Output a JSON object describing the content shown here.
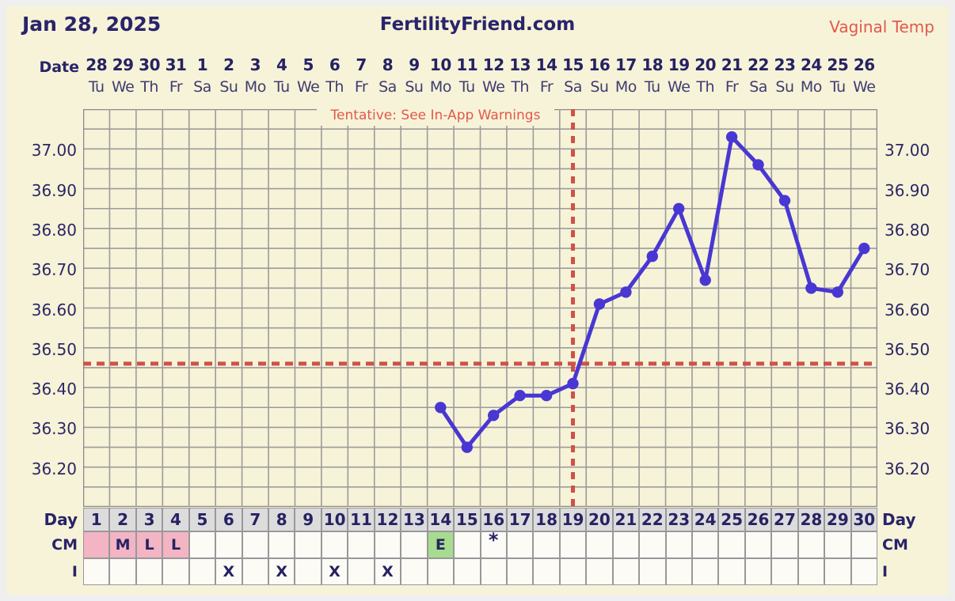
{
  "header": {
    "chart_date": "Jan 28, 2025",
    "site_name": "FertilityFriend.com",
    "temp_type": "Vaginal Temp"
  },
  "date_axis": {
    "label": "Date",
    "dates": [
      "28",
      "29",
      "30",
      "31",
      "1",
      "2",
      "3",
      "4",
      "5",
      "6",
      "7",
      "8",
      "9",
      "10",
      "11",
      "12",
      "13",
      "14",
      "15",
      "16",
      "17",
      "18",
      "19",
      "20",
      "21",
      "22",
      "23",
      "24",
      "25",
      "26"
    ],
    "weekdays": [
      "Tu",
      "We",
      "Th",
      "Fr",
      "Sa",
      "Su",
      "Mo",
      "Tu",
      "We",
      "Th",
      "Fr",
      "Sa",
      "Su",
      "Mo",
      "Tu",
      "We",
      "Th",
      "Fr",
      "Sa",
      "Su",
      "Mo",
      "Tu",
      "We",
      "Th",
      "Fr",
      "Sa",
      "Su",
      "Mo",
      "Tu",
      "We"
    ]
  },
  "chart_data": {
    "type": "line",
    "title": "Basal body temperature chart",
    "annotation": "Tentative: See In-App Warnings",
    "total_days": 30,
    "series": [
      {
        "name": "Vaginal Temp",
        "x_days": [
          14,
          15,
          16,
          17,
          18,
          19,
          20,
          21,
          22,
          23,
          24,
          25,
          26,
          27,
          28,
          29,
          30
        ],
        "values": [
          36.35,
          36.25,
          36.33,
          36.38,
          36.38,
          36.41,
          36.61,
          36.64,
          36.73,
          36.85,
          36.67,
          37.03,
          36.96,
          36.87,
          36.65,
          36.64,
          36.75
        ]
      }
    ],
    "ylim": [
      36.1,
      37.1
    ],
    "grid_step": 0.05,
    "y_ticks": [
      37.0,
      36.9,
      36.8,
      36.7,
      36.6,
      36.5,
      36.4,
      36.3,
      36.2
    ],
    "y_tick_labels": [
      "37.00",
      "36.90",
      "36.80",
      "36.70",
      "36.60",
      "36.50",
      "36.40",
      "36.30",
      "36.20"
    ],
    "coverline_value": 36.46,
    "ovulation_line_day": 19,
    "grid": true,
    "legend_position": "none"
  },
  "table": {
    "day_row": {
      "label": "Day",
      "values": [
        "1",
        "2",
        "3",
        "4",
        "5",
        "6",
        "7",
        "8",
        "9",
        "10",
        "11",
        "12",
        "13",
        "14",
        "15",
        "16",
        "17",
        "18",
        "19",
        "20",
        "21",
        "22",
        "23",
        "24",
        "25",
        "26",
        "27",
        "28",
        "29",
        "30"
      ]
    },
    "cm_row": {
      "label": "CM",
      "entries": [
        {
          "day": 1,
          "text": "",
          "fill": "pink"
        },
        {
          "day": 2,
          "text": "M",
          "fill": "pink"
        },
        {
          "day": 3,
          "text": "L",
          "fill": "pink"
        },
        {
          "day": 4,
          "text": "L",
          "fill": "pink"
        },
        {
          "day": 14,
          "text": "E",
          "fill": "green"
        },
        {
          "day": 16,
          "text": "*",
          "fill": "none"
        }
      ]
    },
    "i_row": {
      "label": "I",
      "mark": "X",
      "marked_days": [
        6,
        8,
        10,
        12
      ]
    }
  },
  "colors": {
    "background": "#f7f3d8",
    "frame": "#efefef",
    "navy_text": "#29246a",
    "grid": "#9b9b9b",
    "chart_border": "#8a8a8a",
    "temp_line": "#4837d3",
    "dashed_lines": "#cf5148",
    "warning_red": "#e2584c",
    "cm_pink": "#f3b4c4",
    "cm_green": "#a7dc8f",
    "day_cell_bg": "#dcdcdc"
  }
}
